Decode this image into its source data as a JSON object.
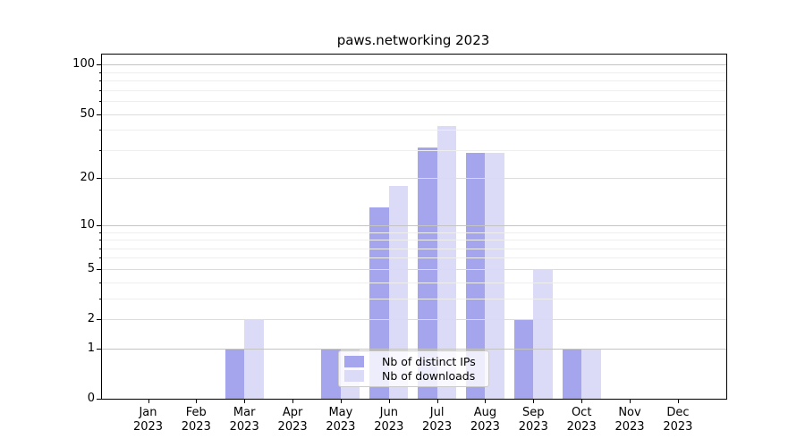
{
  "title": "paws.networking 2023",
  "chart_data": {
    "type": "bar",
    "title": "paws.networking 2023",
    "categories": [
      "Jan 2023",
      "Feb 2023",
      "Mar 2023",
      "Apr 2023",
      "May 2023",
      "Jun 2023",
      "Jul 2023",
      "Aug 2023",
      "Sep 2023",
      "Oct 2023",
      "Nov 2023",
      "Dec 2023"
    ],
    "x_tick_months": [
      "Jan",
      "Feb",
      "Mar",
      "Apr",
      "May",
      "Jun",
      "Jul",
      "Aug",
      "Sep",
      "Oct",
      "Nov",
      "Dec"
    ],
    "x_tick_year": "2023",
    "series": [
      {
        "name": "Nb of distinct IPs",
        "color": "#a5a5ee",
        "values": [
          0,
          0,
          1,
          0,
          1,
          13,
          31,
          29,
          2,
          1,
          0,
          0
        ]
      },
      {
        "name": "Nb of downloads",
        "color": "#dbdbf8",
        "values": [
          0,
          0,
          2,
          0,
          1,
          18,
          42,
          29,
          5,
          1,
          0,
          0
        ]
      }
    ],
    "y_scale": "log1p",
    "ylim": [
      0,
      115
    ],
    "y_ticks": [
      {
        "value": 0,
        "label": "0"
      },
      {
        "value": 1,
        "label": "1"
      },
      {
        "value": 2,
        "label": "2"
      },
      {
        "value": 5,
        "label": "5"
      },
      {
        "value": 10,
        "label": "10"
      },
      {
        "value": 20,
        "label": "20"
      },
      {
        "value": 50,
        "label": "50"
      },
      {
        "value": 100,
        "label": "100"
      }
    ],
    "y_major_gridlines": [
      1,
      10,
      100
    ],
    "y_labeled_gridlines": [
      2,
      5,
      20,
      50
    ],
    "y_minor_gridlines": [
      3,
      4,
      6,
      7,
      8,
      9,
      30,
      40,
      60,
      70,
      80,
      90
    ],
    "grid": true,
    "legend_position": "inside-bottom-center-left"
  },
  "colors": {
    "background": "#ffffff",
    "spine": "#000000",
    "grid_major": "#c4c4c4",
    "grid_labeled": "#dcdcdc",
    "grid_minor": "#eeeeee",
    "series_ips": "#a5a5ee",
    "series_downloads": "#dbdbf8",
    "legend_border": "#cccccc"
  }
}
